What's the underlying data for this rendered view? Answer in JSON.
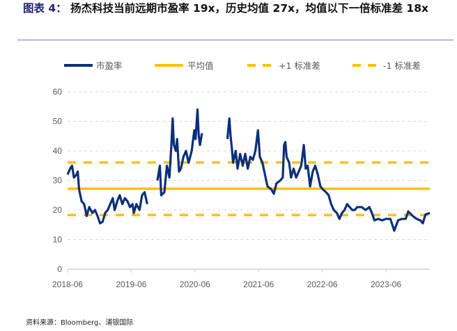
{
  "title": {
    "label": "图表 4：",
    "text": "扬杰科技当前远期市盈率 19x，历史均值 27x，均值以下一倍标准差 18x"
  },
  "source": "资料来源：Bloomberg、浦银国际",
  "colors": {
    "pe": "#0d2f7a",
    "mean": "#ffc000",
    "grid": "#d9d9d9",
    "axis": "#d9d9d9"
  },
  "chart_data": {
    "type": "line",
    "title": "扬杰科技当前远期市盈率 19x，历史均值 27x，均值以下一倍标准差 18x",
    "xlabel": "",
    "ylabel": "",
    "ylim": [
      0,
      60
    ],
    "yticks": [
      "0",
      "10",
      "20",
      "30",
      "40",
      "50",
      "60"
    ],
    "xticks": [
      {
        "label": "2018-06",
        "x": 2018.5
      },
      {
        "label": "2019-06",
        "x": 2019.5
      },
      {
        "label": "2020-06",
        "x": 2020.5
      },
      {
        "label": "2021-06",
        "x": 2021.5
      },
      {
        "label": "2022-06",
        "x": 2022.5
      },
      {
        "label": "2023-06",
        "x": 2023.5
      }
    ],
    "xlim": [
      2018.5,
      2024.19
    ],
    "grid": true,
    "legend_position": "top",
    "legend": [
      "市盈率",
      "平均值",
      "+1 标准差",
      "-1 标准差"
    ],
    "series": [
      {
        "name": "市盈率",
        "segments": [
          [
            [
              2018.5,
              32
            ],
            [
              2018.54,
              34
            ],
            [
              2018.57,
              35
            ],
            [
              2018.6,
              31
            ],
            [
              2018.64,
              32
            ],
            [
              2018.66,
              33
            ],
            [
              2018.68,
              27
            ],
            [
              2018.72,
              23
            ],
            [
              2018.76,
              22
            ],
            [
              2018.8,
              18
            ],
            [
              2018.84,
              21
            ],
            [
              2018.89,
              19
            ],
            [
              2018.93,
              20
            ],
            [
              2018.97,
              18
            ],
            [
              2019.01,
              15.5
            ],
            [
              2019.05,
              16
            ],
            [
              2019.09,
              19
            ],
            [
              2019.13,
              20
            ],
            [
              2019.17,
              22
            ],
            [
              2019.21,
              24
            ],
            [
              2019.24,
              20
            ],
            [
              2019.28,
              23
            ],
            [
              2019.32,
              25
            ],
            [
              2019.36,
              22
            ],
            [
              2019.4,
              24
            ],
            [
              2019.44,
              23
            ],
            [
              2019.48,
              21
            ],
            [
              2019.52,
              22
            ],
            [
              2019.54,
              19
            ],
            [
              2019.58,
              22
            ],
            [
              2019.63,
              20
            ],
            [
              2019.67,
              25
            ],
            [
              2019.71,
              26
            ],
            [
              2019.75,
              22
            ]
          ],
          [
            [
              2019.91,
              30
            ],
            [
              2019.95,
              35
            ],
            [
              2019.97,
              25
            ],
            [
              2020.02,
              26
            ],
            [
              2020.06,
              35
            ],
            [
              2020.1,
              31
            ],
            [
              2020.13,
              42
            ],
            [
              2020.15,
              51
            ],
            [
              2020.17,
              42
            ],
            [
              2020.2,
              40
            ],
            [
              2020.22,
              44
            ],
            [
              2020.25,
              33
            ],
            [
              2020.28,
              34
            ],
            [
              2020.32,
              38
            ],
            [
              2020.36,
              40
            ],
            [
              2020.4,
              36
            ],
            [
              2020.45,
              40
            ],
            [
              2020.49,
              47
            ],
            [
              2020.51,
              44
            ],
            [
              2020.54,
              54
            ],
            [
              2020.56,
              45
            ],
            [
              2020.58,
              42
            ],
            [
              2020.61,
              46
            ]
          ],
          [
            [
              2021.01,
              44
            ],
            [
              2021.04,
              51
            ],
            [
              2021.06,
              45
            ],
            [
              2021.08,
              41
            ],
            [
              2021.1,
              36
            ],
            [
              2021.14,
              40
            ],
            [
              2021.17,
              34
            ],
            [
              2021.21,
              39
            ],
            [
              2021.25,
              35
            ],
            [
              2021.29,
              39
            ],
            [
              2021.33,
              34
            ],
            [
              2021.37,
              38
            ],
            [
              2021.41,
              37
            ],
            [
              2021.45,
              40
            ],
            [
              2021.49,
              47
            ],
            [
              2021.52,
              38
            ],
            [
              2021.56,
              36
            ],
            [
              2021.6,
              32
            ],
            [
              2021.64,
              28
            ],
            [
              2021.7,
              27
            ],
            [
              2021.74,
              25.5
            ],
            [
              2021.78,
              29
            ],
            [
              2021.84,
              30
            ],
            [
              2021.88,
              31
            ],
            [
              2021.9,
              42
            ],
            [
              2021.92,
              43
            ],
            [
              2021.94,
              38
            ],
            [
              2021.98,
              36
            ],
            [
              2022.01,
              31
            ],
            [
              2022.05,
              34
            ],
            [
              2022.09,
              31
            ],
            [
              2022.13,
              33
            ],
            [
              2022.17,
              35
            ],
            [
              2022.21,
              42
            ],
            [
              2022.24,
              34
            ],
            [
              2022.27,
              35
            ],
            [
              2022.31,
              28
            ],
            [
              2022.35,
              33
            ],
            [
              2022.39,
              35
            ],
            [
              2022.43,
              32
            ],
            [
              2022.47,
              28
            ],
            [
              2022.51,
              27
            ],
            [
              2022.56,
              26
            ],
            [
              2022.6,
              25
            ],
            [
              2022.64,
              22
            ],
            [
              2022.68,
              20
            ],
            [
              2022.73,
              19
            ],
            [
              2022.77,
              17
            ],
            [
              2022.81,
              19
            ],
            [
              2022.85,
              20
            ],
            [
              2022.89,
              22
            ],
            [
              2022.93,
              21
            ],
            [
              2022.97,
              20
            ],
            [
              2023.01,
              20
            ],
            [
              2023.05,
              21
            ],
            [
              2023.12,
              21
            ],
            [
              2023.18,
              20
            ],
            [
              2023.24,
              21
            ],
            [
              2023.28,
              19
            ],
            [
              2023.32,
              16.5
            ],
            [
              2023.38,
              17
            ],
            [
              2023.44,
              16.5
            ],
            [
              2023.5,
              17
            ],
            [
              2023.57,
              17
            ],
            [
              2023.63,
              13
            ],
            [
              2023.69,
              16.5
            ],
            [
              2023.75,
              17
            ],
            [
              2023.81,
              17
            ],
            [
              2023.85,
              19.5
            ],
            [
              2023.92,
              18
            ],
            [
              2023.98,
              17
            ],
            [
              2024.04,
              16.5
            ],
            [
              2024.08,
              15.5
            ],
            [
              2024.12,
              18.5
            ],
            [
              2024.19,
              19
            ]
          ]
        ]
      },
      {
        "name": "平均值",
        "value": 27.2
      },
      {
        "name": "+1 标准差",
        "value": 36.1
      },
      {
        "name": "-1 标准差",
        "value": 18.3
      }
    ]
  }
}
